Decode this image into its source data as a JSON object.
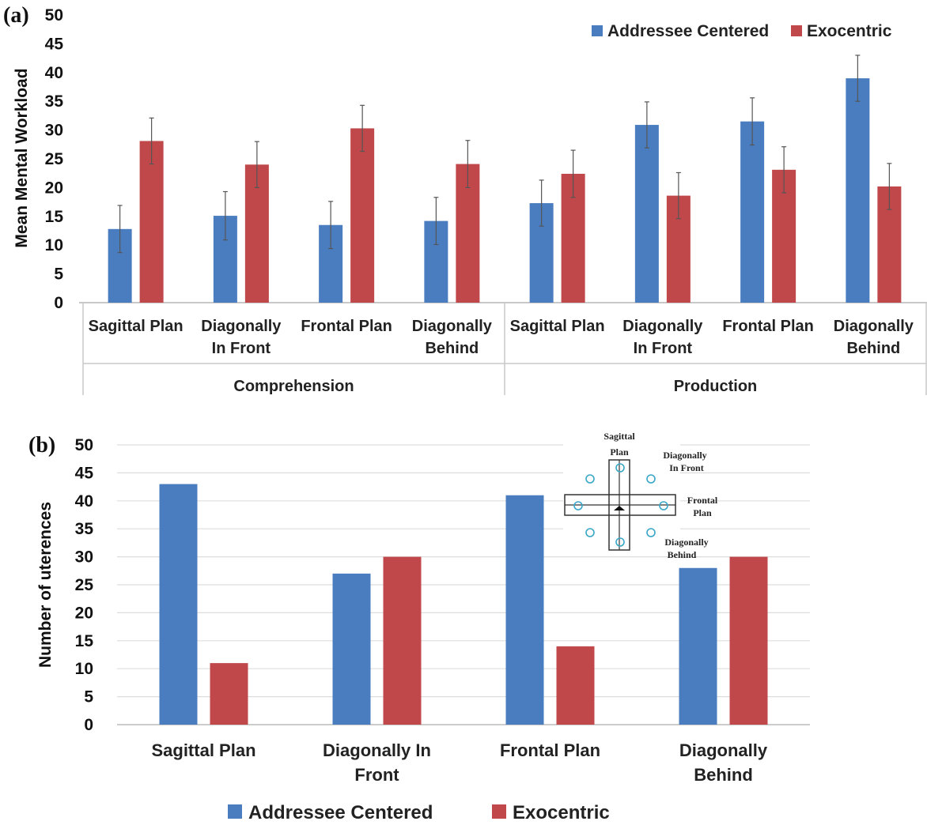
{
  "chart_data": [
    {
      "panel_label": "(a)",
      "type": "bar",
      "ylabel": "Mean Mental Workload",
      "ylim": [
        0,
        50
      ],
      "yticks": [
        0,
        5,
        10,
        15,
        20,
        25,
        30,
        35,
        40,
        45,
        50
      ],
      "grid": false,
      "legend_position": "top-right",
      "groups": [
        {
          "label": "Comprehension",
          "categories": [
            [
              "Sagittal Plan"
            ],
            [
              "Diagonally",
              "In Front"
            ],
            [
              "Frontal Plan"
            ],
            [
              "Diagonally",
              "Behind"
            ]
          ]
        },
        {
          "label": "Production",
          "categories": [
            [
              "Sagittal Plan"
            ],
            [
              "Diagonally",
              "In Front"
            ],
            [
              "Frontal Plan"
            ],
            [
              "Diagonally",
              "Behind"
            ]
          ]
        }
      ],
      "series": [
        {
          "name": "Addressee Centered",
          "color": "#4a7dc0",
          "values": [
            12.8,
            15.1,
            13.5,
            14.2,
            17.3,
            30.9,
            31.5,
            39.0
          ],
          "errors": [
            4.1,
            4.2,
            4.1,
            4.1,
            4.0,
            4.0,
            4.1,
            4.0
          ]
        },
        {
          "name": "Exocentric",
          "color": "#c0484a",
          "values": [
            28.1,
            24.0,
            30.3,
            24.1,
            22.4,
            18.6,
            23.1,
            20.2
          ],
          "errors": [
            4.0,
            4.0,
            4.0,
            4.1,
            4.1,
            4.0,
            4.0,
            4.0
          ]
        }
      ]
    },
    {
      "panel_label": "(b)",
      "type": "bar",
      "ylabel": "Number of uterences",
      "ylim": [
        0,
        50
      ],
      "yticks": [
        0,
        5,
        10,
        15,
        20,
        25,
        30,
        35,
        40,
        45,
        50
      ],
      "grid": true,
      "legend_position": "bottom",
      "categories": [
        [
          "Sagittal Plan"
        ],
        [
          "Diagonally In",
          "Front"
        ],
        [
          "Frontal Plan"
        ],
        [
          "Diagonally",
          "Behind"
        ]
      ],
      "series": [
        {
          "name": "Addressee Centered",
          "color": "#4a7dc0",
          "values": [
            43,
            27,
            41,
            28
          ]
        },
        {
          "name": "Exocentric",
          "color": "#c0484a",
          "values": [
            11,
            30,
            14,
            30
          ]
        }
      ],
      "inset_labels": {
        "sagittal": [
          "Sagittal",
          "Plan"
        ],
        "diag_front": [
          "Diagonally",
          "In Front"
        ],
        "frontal": [
          "Frontal",
          "Plan"
        ],
        "diag_behind": [
          "Diagonally",
          "Behind"
        ]
      }
    }
  ]
}
